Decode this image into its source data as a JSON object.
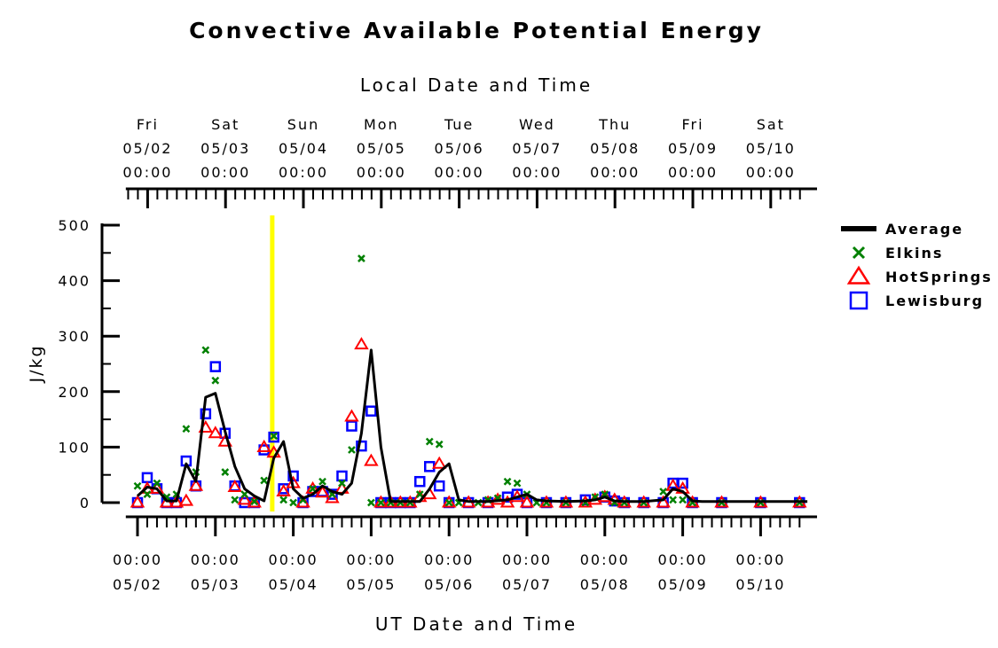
{
  "chart_data": {
    "type": "scatter",
    "title": "Convective Available Potential Energy",
    "top_axis_label": "Local Date and Time",
    "xlabel": "UT Date and Time",
    "ylabel": "J/kg",
    "ylim": [
      0,
      500
    ],
    "yticks": [
      "0",
      "100",
      "200",
      "300",
      "400",
      "500"
    ],
    "xlim_days": [
      -0.15,
      8.6
    ],
    "current_time_marker_day": 1.73,
    "marker_color": "#ffff00",
    "top_ticks": [
      {
        "day": 0.13,
        "lines": [
          "Fri",
          "05/02",
          "00:00"
        ]
      },
      {
        "day": 1.13,
        "lines": [
          "Sat",
          "05/03",
          "00:00"
        ]
      },
      {
        "day": 2.13,
        "lines": [
          "Sun",
          "05/04",
          "00:00"
        ]
      },
      {
        "day": 3.13,
        "lines": [
          "Mon",
          "05/05",
          "00:00"
        ]
      },
      {
        "day": 4.13,
        "lines": [
          "Tue",
          "05/06",
          "00:00"
        ]
      },
      {
        "day": 5.13,
        "lines": [
          "Wed",
          "05/07",
          "00:00"
        ]
      },
      {
        "day": 6.13,
        "lines": [
          "Thu",
          "05/08",
          "00:00"
        ]
      },
      {
        "day": 7.13,
        "lines": [
          "Fri",
          "05/09",
          "00:00"
        ]
      },
      {
        "day": 8.13,
        "lines": [
          "Sat",
          "05/10",
          "00:00"
        ]
      }
    ],
    "bottom_ticks": [
      {
        "day": 0,
        "lines": [
          "00:00",
          "05/02"
        ]
      },
      {
        "day": 1,
        "lines": [
          "00:00",
          "05/03"
        ]
      },
      {
        "day": 2,
        "lines": [
          "00:00",
          "05/04"
        ]
      },
      {
        "day": 3,
        "lines": [
          "00:00",
          "05/05"
        ]
      },
      {
        "day": 4,
        "lines": [
          "00:00",
          "05/06"
        ]
      },
      {
        "day": 5,
        "lines": [
          "00:00",
          "05/07"
        ]
      },
      {
        "day": 6,
        "lines": [
          "00:00",
          "05/08"
        ]
      },
      {
        "day": 7,
        "lines": [
          "00:00",
          "05/09"
        ]
      },
      {
        "day": 8,
        "lines": [
          "00:00",
          "05/10"
        ]
      }
    ],
    "series": [
      {
        "name": "Average",
        "kind": "line",
        "color": "#000000",
        "points": [
          [
            0,
            12
          ],
          [
            0.125,
            28
          ],
          [
            0.25,
            25
          ],
          [
            0.375,
            3
          ],
          [
            0.5,
            3
          ],
          [
            0.625,
            70
          ],
          [
            0.75,
            38
          ],
          [
            0.875,
            190
          ],
          [
            1.0,
            197
          ],
          [
            1.125,
            128
          ],
          [
            1.25,
            65
          ],
          [
            1.375,
            25
          ],
          [
            1.5,
            12
          ],
          [
            1.625,
            3
          ],
          [
            1.75,
            80
          ],
          [
            1.875,
            110
          ],
          [
            2.0,
            25
          ],
          [
            2.125,
            8
          ],
          [
            2.25,
            15
          ],
          [
            2.375,
            30
          ],
          [
            2.5,
            20
          ],
          [
            2.625,
            15
          ],
          [
            2.75,
            35
          ],
          [
            2.875,
            125
          ],
          [
            3.0,
            275
          ],
          [
            3.125,
            100
          ],
          [
            3.25,
            2
          ],
          [
            3.375,
            2
          ],
          [
            3.5,
            2
          ],
          [
            3.625,
            2
          ],
          [
            3.75,
            25
          ],
          [
            3.875,
            55
          ],
          [
            4.0,
            70
          ],
          [
            4.125,
            5
          ],
          [
            4.25,
            2
          ],
          [
            4.5,
            2
          ],
          [
            4.75,
            5
          ],
          [
            4.875,
            10
          ],
          [
            5.0,
            15
          ],
          [
            5.125,
            5
          ],
          [
            5.25,
            3
          ],
          [
            5.5,
            2
          ],
          [
            5.75,
            3
          ],
          [
            5.875,
            5
          ],
          [
            6.0,
            10
          ],
          [
            6.125,
            3
          ],
          [
            6.25,
            2
          ],
          [
            6.5,
            2
          ],
          [
            6.75,
            5
          ],
          [
            6.875,
            25
          ],
          [
            7.0,
            20
          ],
          [
            7.125,
            3
          ],
          [
            7.25,
            2
          ],
          [
            8.6,
            2
          ]
        ]
      },
      {
        "name": "Elkins",
        "kind": "x",
        "color": "#008000",
        "points": [
          [
            0,
            30
          ],
          [
            0.125,
            15
          ],
          [
            0.25,
            35
          ],
          [
            0.375,
            10
          ],
          [
            0.5,
            15
          ],
          [
            0.625,
            133
          ],
          [
            0.75,
            55
          ],
          [
            0.875,
            275
          ],
          [
            1.0,
            220
          ],
          [
            1.125,
            55
          ],
          [
            1.25,
            5
          ],
          [
            1.375,
            15
          ],
          [
            1.5,
            2
          ],
          [
            1.625,
            40
          ],
          [
            1.75,
            120
          ],
          [
            1.875,
            5
          ],
          [
            2.0,
            0
          ],
          [
            2.125,
            5
          ],
          [
            2.25,
            25
          ],
          [
            2.375,
            38
          ],
          [
            2.5,
            15
          ],
          [
            2.625,
            35
          ],
          [
            2.75,
            95
          ],
          [
            2.875,
            440
          ],
          [
            3.0,
            0
          ],
          [
            3.125,
            0
          ],
          [
            3.25,
            0
          ],
          [
            3.375,
            0
          ],
          [
            3.5,
            0
          ],
          [
            3.625,
            15
          ],
          [
            3.75,
            110
          ],
          [
            3.875,
            105
          ],
          [
            4.0,
            0
          ],
          [
            4.125,
            0
          ],
          [
            4.375,
            0
          ],
          [
            4.5,
            5
          ],
          [
            4.625,
            8
          ],
          [
            4.75,
            38
          ],
          [
            4.875,
            35
          ],
          [
            5.0,
            15
          ],
          [
            5.125,
            0
          ],
          [
            5.25,
            0
          ],
          [
            5.5,
            0
          ],
          [
            5.75,
            0
          ],
          [
            5.875,
            10
          ],
          [
            6.0,
            15
          ],
          [
            6.125,
            0
          ],
          [
            6.25,
            0
          ],
          [
            6.5,
            0
          ],
          [
            6.75,
            20
          ],
          [
            6.875,
            5
          ],
          [
            7.0,
            5
          ],
          [
            7.125,
            0
          ],
          [
            7.5,
            0
          ],
          [
            8.0,
            0
          ],
          [
            8.5,
            0
          ]
        ]
      },
      {
        "name": "HotSprings",
        "kind": "triangle",
        "color": "#ff0000",
        "points": [
          [
            0,
            0
          ],
          [
            0.125,
            25
          ],
          [
            0.25,
            25
          ],
          [
            0.375,
            0
          ],
          [
            0.5,
            0
          ],
          [
            0.625,
            3
          ],
          [
            0.75,
            30
          ],
          [
            0.875,
            135
          ],
          [
            1.0,
            125
          ],
          [
            1.125,
            110
          ],
          [
            1.25,
            28
          ],
          [
            1.375,
            5
          ],
          [
            1.5,
            0
          ],
          [
            1.625,
            100
          ],
          [
            1.75,
            90
          ],
          [
            1.875,
            20
          ],
          [
            2.0,
            35
          ],
          [
            2.125,
            0
          ],
          [
            2.25,
            25
          ],
          [
            2.375,
            18
          ],
          [
            2.5,
            8
          ],
          [
            2.625,
            25
          ],
          [
            2.75,
            155
          ],
          [
            2.875,
            285
          ],
          [
            3.0,
            75
          ],
          [
            3.125,
            0
          ],
          [
            3.25,
            0
          ],
          [
            3.375,
            0
          ],
          [
            3.5,
            0
          ],
          [
            3.625,
            10
          ],
          [
            3.75,
            15
          ],
          [
            3.875,
            70
          ],
          [
            4.0,
            0
          ],
          [
            4.25,
            0
          ],
          [
            4.5,
            0
          ],
          [
            4.625,
            5
          ],
          [
            4.75,
            0
          ],
          [
            4.875,
            10
          ],
          [
            5.0,
            0
          ],
          [
            5.25,
            0
          ],
          [
            5.5,
            0
          ],
          [
            5.75,
            0
          ],
          [
            5.875,
            5
          ],
          [
            6.0,
            10
          ],
          [
            6.125,
            5
          ],
          [
            6.25,
            0
          ],
          [
            6.5,
            0
          ],
          [
            6.75,
            0
          ],
          [
            6.875,
            30
          ],
          [
            7.0,
            25
          ],
          [
            7.125,
            0
          ],
          [
            7.5,
            0
          ],
          [
            8.0,
            0
          ],
          [
            8.5,
            0
          ]
        ]
      },
      {
        "name": "Lewisburg",
        "kind": "square",
        "color": "#0000ff",
        "points": [
          [
            0,
            0
          ],
          [
            0.125,
            45
          ],
          [
            0.25,
            25
          ],
          [
            0.375,
            0
          ],
          [
            0.5,
            0
          ],
          [
            0.625,
            75
          ],
          [
            0.75,
            30
          ],
          [
            0.875,
            160
          ],
          [
            1.0,
            245
          ],
          [
            1.125,
            125
          ],
          [
            1.25,
            30
          ],
          [
            1.375,
            0
          ],
          [
            1.5,
            0
          ],
          [
            1.625,
            95
          ],
          [
            1.75,
            118
          ],
          [
            1.875,
            25
          ],
          [
            2.0,
            48
          ],
          [
            2.125,
            0
          ],
          [
            2.25,
            20
          ],
          [
            2.375,
            20
          ],
          [
            2.5,
            15
          ],
          [
            2.625,
            48
          ],
          [
            2.75,
            138
          ],
          [
            2.875,
            102
          ],
          [
            3.0,
            165
          ],
          [
            3.125,
            0
          ],
          [
            3.25,
            0
          ],
          [
            3.375,
            0
          ],
          [
            3.5,
            0
          ],
          [
            3.625,
            38
          ],
          [
            3.75,
            65
          ],
          [
            3.875,
            30
          ],
          [
            4.0,
            0
          ],
          [
            4.25,
            0
          ],
          [
            4.5,
            0
          ],
          [
            4.75,
            10
          ],
          [
            4.875,
            15
          ],
          [
            5.0,
            0
          ],
          [
            5.25,
            0
          ],
          [
            5.5,
            0
          ],
          [
            5.75,
            5
          ],
          [
            6.0,
            10
          ],
          [
            6.125,
            3
          ],
          [
            6.25,
            0
          ],
          [
            6.5,
            0
          ],
          [
            6.75,
            0
          ],
          [
            6.875,
            35
          ],
          [
            7.0,
            35
          ],
          [
            7.125,
            0
          ],
          [
            7.5,
            0
          ],
          [
            8.0,
            0
          ],
          [
            8.5,
            0
          ]
        ]
      }
    ],
    "legend": {
      "position": "right",
      "entries": [
        {
          "label": "Average",
          "kind": "line",
          "color": "#000000"
        },
        {
          "label": "Elkins",
          "kind": "x",
          "color": "#008000"
        },
        {
          "label": "HotSprings",
          "kind": "triangle",
          "color": "#ff0000"
        },
        {
          "label": "Lewisburg",
          "kind": "square",
          "color": "#0000ff"
        }
      ]
    }
  }
}
